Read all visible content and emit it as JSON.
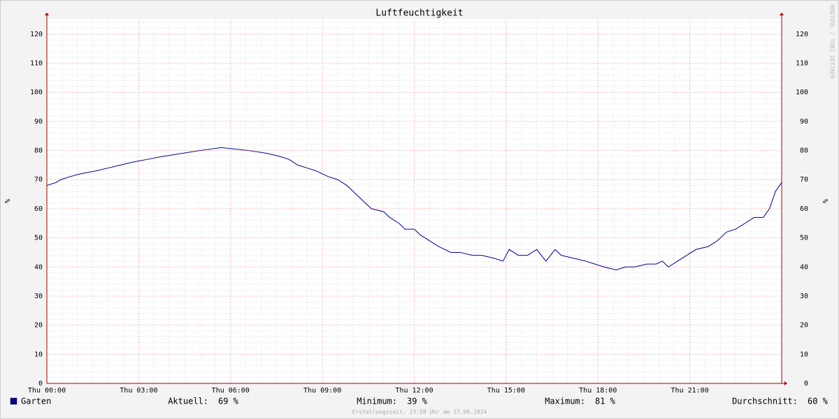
{
  "chart_data": {
    "type": "line",
    "title": "Luftfeuchtigkeit",
    "y_label": "%",
    "x": [
      0,
      0.3,
      0.45,
      0.75,
      1.1,
      1.6,
      2.0,
      2.4,
      2.8,
      3.3,
      3.8,
      4.4,
      5.0,
      5.7,
      6.6,
      7.2,
      7.6,
      7.9,
      8.2,
      8.5,
      8.8,
      9.0,
      9.2,
      9.5,
      9.8,
      10.0,
      10.2,
      10.4,
      10.6,
      11.0,
      11.2,
      11.5,
      11.7,
      12.0,
      12.2,
      12.5,
      12.8,
      13.0,
      13.2,
      13.5,
      13.9,
      14.2,
      14.6,
      14.9,
      15.1,
      15.4,
      15.7,
      16.0,
      16.3,
      16.6,
      16.8,
      17.2,
      17.6,
      17.9,
      18.2,
      18.6,
      18.9,
      19.2,
      19.6,
      19.9,
      20.1,
      20.3,
      20.6,
      20.9,
      21.2,
      21.6,
      21.9,
      22.2,
      22.5,
      22.8,
      23.1,
      23.4,
      23.6,
      23.8,
      24
    ],
    "series": [
      {
        "name": "Garten",
        "color": "#000090",
        "values": [
          68,
          69,
          70,
          71,
          72,
          73,
          74,
          75,
          76,
          77,
          78,
          79,
          80,
          81,
          80,
          79,
          78,
          77,
          75,
          74,
          73,
          72,
          71,
          70,
          68,
          66,
          64,
          62,
          60,
          59,
          57,
          55,
          53,
          53,
          51,
          49,
          47,
          46,
          45,
          45,
          44,
          44,
          43,
          42,
          46,
          44,
          44,
          46,
          42,
          46,
          44,
          43,
          42,
          41,
          40,
          39,
          40,
          40,
          41,
          41,
          42,
          40,
          42,
          44,
          46,
          47,
          49,
          52,
          53,
          55,
          57,
          57,
          60,
          66,
          69
        ]
      }
    ],
    "xlim": [
      0,
      24
    ],
    "xticks": [
      {
        "value": 0,
        "label": "Thu 00:00"
      },
      {
        "value": 3,
        "label": "Thu 03:00"
      },
      {
        "value": 6,
        "label": "Thu 06:00"
      },
      {
        "value": 9,
        "label": "Thu 09:00"
      },
      {
        "value": 12,
        "label": "Thu 12:00"
      },
      {
        "value": 15,
        "label": "Thu 15:00"
      },
      {
        "value": 18,
        "label": "Thu 18:00"
      },
      {
        "value": 21,
        "label": "Thu 21:00"
      }
    ],
    "ylim": [
      0,
      125
    ],
    "yticks": [
      0,
      10,
      20,
      30,
      40,
      50,
      60,
      70,
      80,
      90,
      100,
      110,
      120
    ],
    "grid": true,
    "stats": [
      {
        "label": "Aktuell:",
        "value": 69,
        "value_label": "69 %"
      },
      {
        "label": "Minimum:",
        "value": 39,
        "value_label": "39 %"
      },
      {
        "label": "Maximum:",
        "value": 81,
        "value_label": "81 %"
      },
      {
        "label": "Durchschnitt:",
        "value": 60,
        "value_label": "60 %"
      }
    ],
    "footer": "Erstellungszeit: 23:58 Uhr am 27.06.2024",
    "watermark": "RRDTOOL / TOBI OETIKER"
  }
}
